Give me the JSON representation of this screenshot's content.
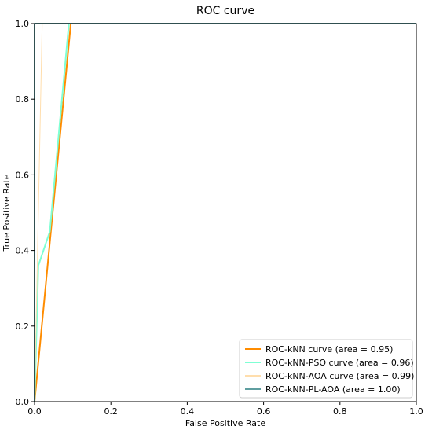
{
  "chart_data": {
    "type": "line",
    "title": "ROC curve",
    "xlabel": "False Positive Rate",
    "ylabel": "True Positive Rate",
    "xlim": [
      0.0,
      1.0
    ],
    "ylim": [
      0.0,
      1.0
    ],
    "xticks": [
      "0.0",
      "0.2",
      "0.4",
      "0.6",
      "0.8",
      "1.0"
    ],
    "yticks": [
      "0.0",
      "0.2",
      "0.4",
      "0.6",
      "0.8",
      "1.0"
    ],
    "grid": false,
    "legend_position": "lower-right",
    "series": [
      {
        "name": "ROC-kNN curve (area = 0.95)",
        "color": "#ff8c00",
        "x": [
          0.0,
          0.095,
          1.0
        ],
        "y": [
          0.0,
          1.0,
          1.0
        ]
      },
      {
        "name": "ROC-kNN-PSO curve (area = 0.96)",
        "color": "#7fffd4",
        "x": [
          0.0,
          0.01,
          0.04,
          0.09,
          1.0
        ],
        "y": [
          0.0,
          0.36,
          0.45,
          1.0,
          1.0
        ]
      },
      {
        "name": "ROC-kNN-AOA curve (area = 0.99)",
        "color": "#ffdead",
        "x": [
          0.0,
          0.02,
          1.0
        ],
        "y": [
          0.0,
          1.0,
          1.0
        ]
      },
      {
        "name": "ROC-kNN-PL-AOA (area = 1.00)",
        "color": "#5f9ea0",
        "x": [
          0.0,
          0.0,
          1.0
        ],
        "y": [
          0.0,
          1.0,
          1.0
        ]
      }
    ]
  }
}
